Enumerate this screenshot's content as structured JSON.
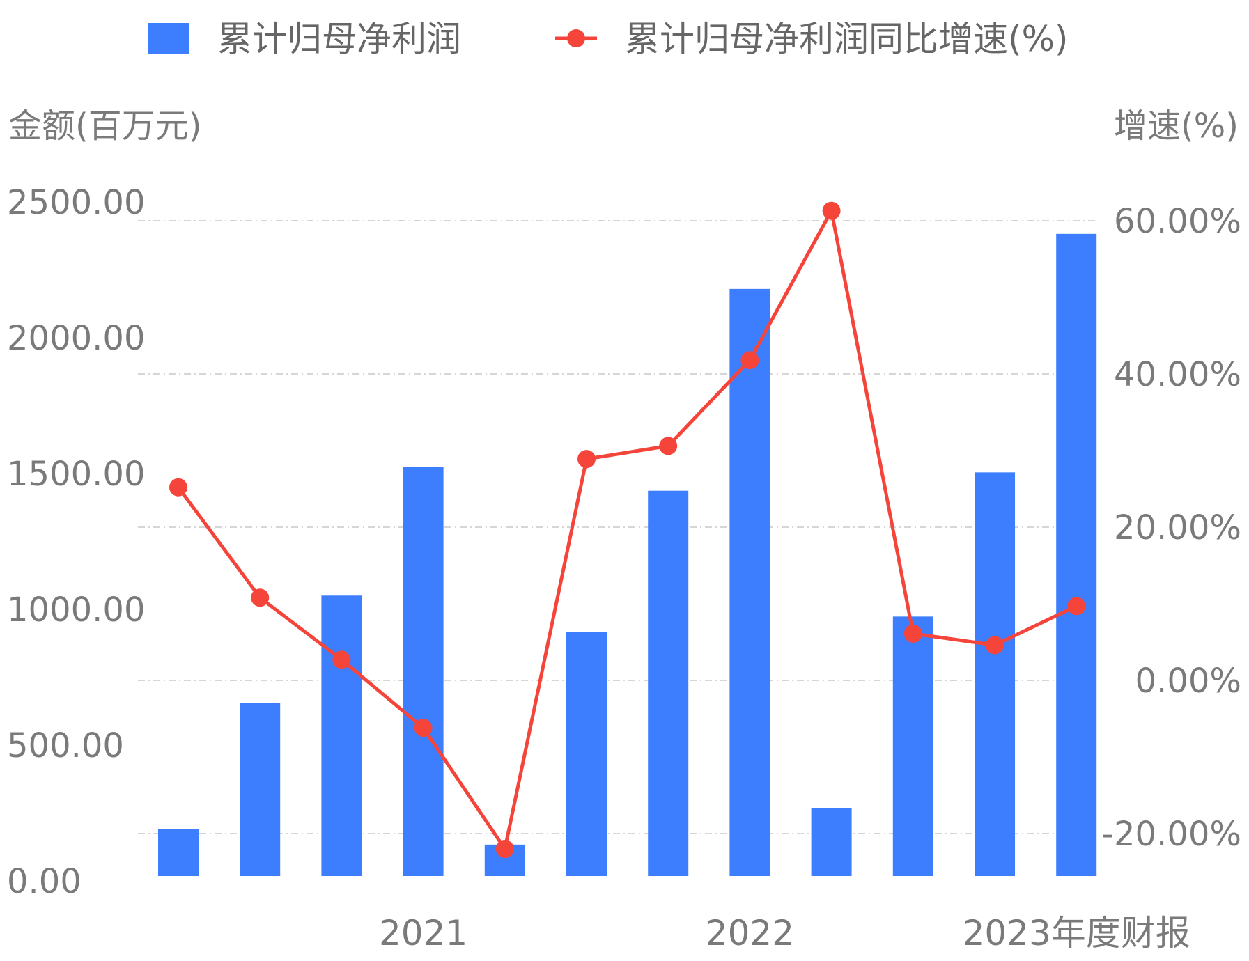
{
  "chart_data": {
    "type": "bar",
    "legend": {
      "position": "top",
      "entries": [
        {
          "label": "累计归母净利润",
          "kind": "bar"
        },
        {
          "label": "累计归母净利润同比增速(%)",
          "kind": "line"
        }
      ]
    },
    "left_axis": {
      "title": "金额(百万元)",
      "ylim": [
        -100,
        2500
      ],
      "tick_labels": [
        "0.00",
        "500.00",
        "1000.00",
        "1500.00",
        "2000.00",
        "2500.00"
      ]
    },
    "right_axis": {
      "title": "增速(%)",
      "ylim": [
        -26,
        60
      ],
      "tick_labels": [
        "-20.00%",
        "0.00%",
        "20.00%",
        "40.00%",
        "60.00%"
      ]
    },
    "x_labels": [
      "2021",
      "2022",
      "2023年度财报"
    ],
    "grid": true,
    "series": [
      {
        "name": "累计归母净利润",
        "type": "bar",
        "axis": "left",
        "color": "#3d7efe",
        "values": [
          180,
          660,
          1070,
          1560,
          120,
          930,
          1470,
          2240,
          260,
          990,
          1540,
          2450
        ]
      },
      {
        "name": "累计归母净利润同比增速(%)",
        "type": "line",
        "axis": "right",
        "color": "#f5453b",
        "values": [
          25.2,
          10.8,
          2.7,
          -6.2,
          -22.0,
          28.9,
          30.6,
          41.8,
          61.3,
          6.1,
          4.6,
          9.7
        ]
      }
    ]
  }
}
